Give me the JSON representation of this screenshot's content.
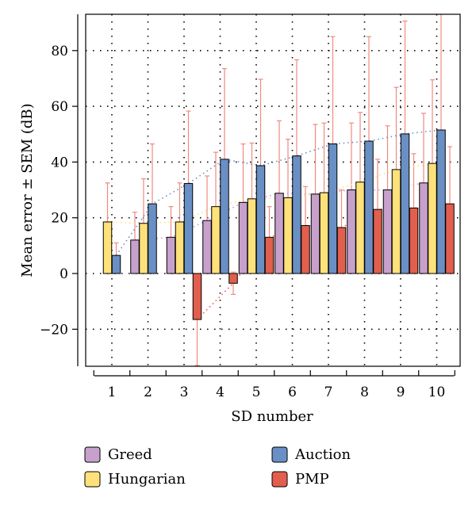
{
  "chart_data": {
    "type": "bar",
    "title": "",
    "xlabel": "SD number",
    "ylabel": "Mean error ± SEM (dB)",
    "categories": [
      "1",
      "2",
      "3",
      "4",
      "5",
      "6",
      "7",
      "8",
      "9",
      "10"
    ],
    "ylim": [
      -33,
      93
    ],
    "yticks": [
      -20,
      0,
      20,
      40,
      60,
      80
    ],
    "ytick_labels": [
      "−20",
      "0",
      "20",
      "40",
      "60",
      "80"
    ],
    "grid": true,
    "legend_position": "bottom",
    "series": [
      {
        "name": "Greed",
        "color": "#c7a0cc",
        "values": [
          null,
          12,
          13,
          19,
          25.5,
          28.8,
          28.5,
          30,
          30,
          32.5
        ],
        "error": [
          null,
          10,
          11,
          16,
          21,
          26,
          25,
          24,
          23,
          25
        ]
      },
      {
        "name": "Hungarian",
        "color": "#fde17a",
        "values": [
          18.5,
          18,
          18.5,
          24,
          26.8,
          27.2,
          29,
          32.8,
          37.3,
          39.5
        ],
        "error": [
          14,
          16,
          14,
          19.5,
          20,
          21,
          25,
          25,
          29.5,
          30
        ]
      },
      {
        "name": "Auction",
        "color": "#6a8fc4",
        "values": [
          6.5,
          25,
          32.3,
          41,
          38.7,
          42.2,
          46.5,
          47.5,
          50.1,
          51.5
        ],
        "error": [
          4.5,
          21.5,
          26,
          32.5,
          31,
          34.5,
          38.5,
          37.5,
          40.5,
          41.5
        ]
      },
      {
        "name": "PMP",
        "color": "#e15f4c",
        "values": [
          null,
          null,
          -16.5,
          -3.5,
          13,
          17.2,
          16.5,
          23,
          23.5,
          25
        ],
        "error": [
          null,
          null,
          16.5,
          4,
          11,
          14,
          13.5,
          18,
          19.5,
          20.5
        ]
      }
    ]
  }
}
